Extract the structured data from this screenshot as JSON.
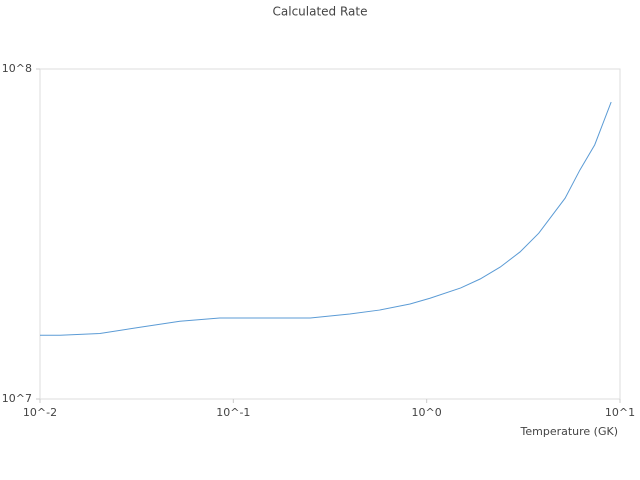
{
  "chart_data": {
    "type": "line",
    "title": "Calculated Rate",
    "x_label": "Temperature (GK)",
    "x": [
      0.01,
      0.0127,
      0.0204,
      0.0329,
      0.0529,
      0.085,
      0.137,
      0.25,
      0.4,
      0.57,
      0.82,
      1.04,
      1.5,
      1.89,
      2.4,
      3.04,
      3.8,
      5.2,
      6.2,
      7.4,
      9.0
    ],
    "series": [
      {
        "name": "Calculated Rate",
        "color": "#5b9bd5",
        "values": [
          15600000,
          15600000,
          15800000,
          16500000,
          17200000,
          17600000,
          17600000,
          17600000,
          18100000,
          18600000,
          19400000,
          20200000,
          21700000,
          23100000,
          25100000,
          27900000,
          31800000,
          40600000,
          49400000,
          58900000,
          79400000
        ]
      }
    ],
    "xlim": [
      0.01,
      10
    ],
    "ylim": [
      10000000,
      100000000
    ],
    "xscale": "log",
    "yscale": "log",
    "xticks": [
      {
        "value": 0.01,
        "label": "10^-2"
      },
      {
        "value": 0.1,
        "label": "10^-1"
      },
      {
        "value": 1,
        "label": "10^0"
      },
      {
        "value": 10,
        "label": "10^1"
      }
    ],
    "yticks": [
      {
        "value": 10000000,
        "label": "10^7"
      },
      {
        "value": 100000000,
        "label": "10^8"
      }
    ]
  }
}
